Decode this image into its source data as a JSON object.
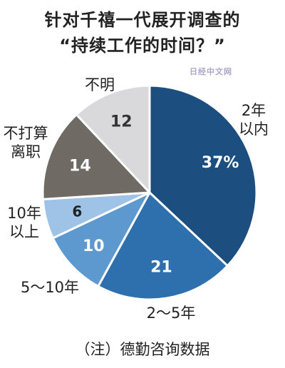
{
  "title": [
    "针对千禧一代展开调查的",
    "“持续工作的时间？”"
  ],
  "watermark": "日经中文网",
  "note": "（注）德勤咨询数据",
  "chart_data": {
    "type": "pie",
    "start_angle_deg": 0,
    "direction": "clockwise",
    "slices": [
      {
        "label": [
          "2年",
          "以内"
        ],
        "value": 37,
        "display": "37%",
        "color": "#1c4f80"
      },
      {
        "label": [
          "2～5年"
        ],
        "value": 21,
        "display": "21",
        "color": "#2e6fae"
      },
      {
        "label": [
          "5～10年"
        ],
        "value": 10,
        "display": "10",
        "color": "#5d98cf"
      },
      {
        "label": [
          "10年",
          "以上"
        ],
        "value": 6,
        "display": "6",
        "color": "#9ec3e6"
      },
      {
        "label": [
          "不打算",
          "离职"
        ],
        "value": 14,
        "display": "14",
        "color": "#6f6a63"
      },
      {
        "label": [
          "不明"
        ],
        "value": 12,
        "display": "12",
        "color": "#d9d9db"
      }
    ]
  }
}
